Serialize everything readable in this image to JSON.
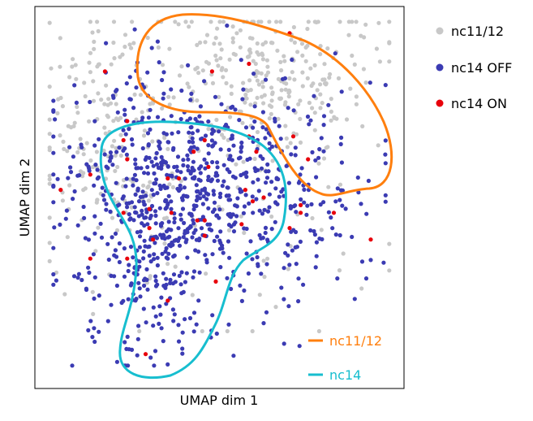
{
  "chart_data": {
    "type": "scatter",
    "title": "",
    "xlabel": "UMAP dim 1",
    "ylabel": "UMAP dim 2",
    "xlim": [
      0,
      10
    ],
    "ylim": [
      0,
      10
    ],
    "ticks": "none",
    "grid": false,
    "legend_placement": "outside-right",
    "series": [
      {
        "name": "nc11/12",
        "color": "#c8c8c8",
        "marker": "circle",
        "approx_count": 520
      },
      {
        "name": "nc14 OFF",
        "color": "#3b3bb3",
        "marker": "circle",
        "approx_count": 900
      },
      {
        "name": "nc14 ON",
        "color": "#e8000b",
        "marker": "circle",
        "points": [
          [
            1.9,
            8.3
          ],
          [
            4.8,
            8.3
          ],
          [
            6.9,
            9.3
          ],
          [
            5.8,
            8.5
          ],
          [
            2.4,
            6.5
          ],
          [
            1.5,
            5.6
          ],
          [
            2.5,
            7.0
          ],
          [
            4.6,
            6.5
          ],
          [
            4.3,
            6.2
          ],
          [
            0.7,
            5.2
          ],
          [
            3.9,
            5.5
          ],
          [
            4.4,
            4.4
          ],
          [
            3.1,
            4.7
          ],
          [
            2.4,
            4.6
          ],
          [
            2.5,
            6.0
          ],
          [
            4.6,
            4.0
          ],
          [
            6.9,
            4.2
          ],
          [
            7.2,
            4.8
          ],
          [
            5.7,
            5.2
          ],
          [
            7.0,
            6.6
          ],
          [
            7.2,
            4.6
          ],
          [
            7.4,
            6.0
          ],
          [
            8.1,
            4.6
          ],
          [
            4.7,
            5.8
          ],
          [
            3.2,
            3.9
          ],
          [
            3.1,
            4.2
          ],
          [
            2.5,
            3.4
          ],
          [
            3.7,
            4.6
          ],
          [
            4.6,
            4.4
          ],
          [
            4.9,
            2.8
          ],
          [
            3.6,
            2.3
          ],
          [
            5.9,
            4.9
          ],
          [
            6.2,
            5.0
          ],
          [
            3.0,
            0.9
          ],
          [
            1.5,
            3.4
          ],
          [
            5.6,
            4.3
          ],
          [
            3.6,
            5.5
          ],
          [
            6.0,
            6.2
          ],
          [
            9.1,
            3.9
          ],
          [
            5.8,
            6.6
          ]
        ]
      }
    ],
    "outlines": [
      {
        "name": "nc11/12",
        "color": "#ff7f0e"
      },
      {
        "name": "nc14",
        "color": "#17becf"
      }
    ]
  }
}
